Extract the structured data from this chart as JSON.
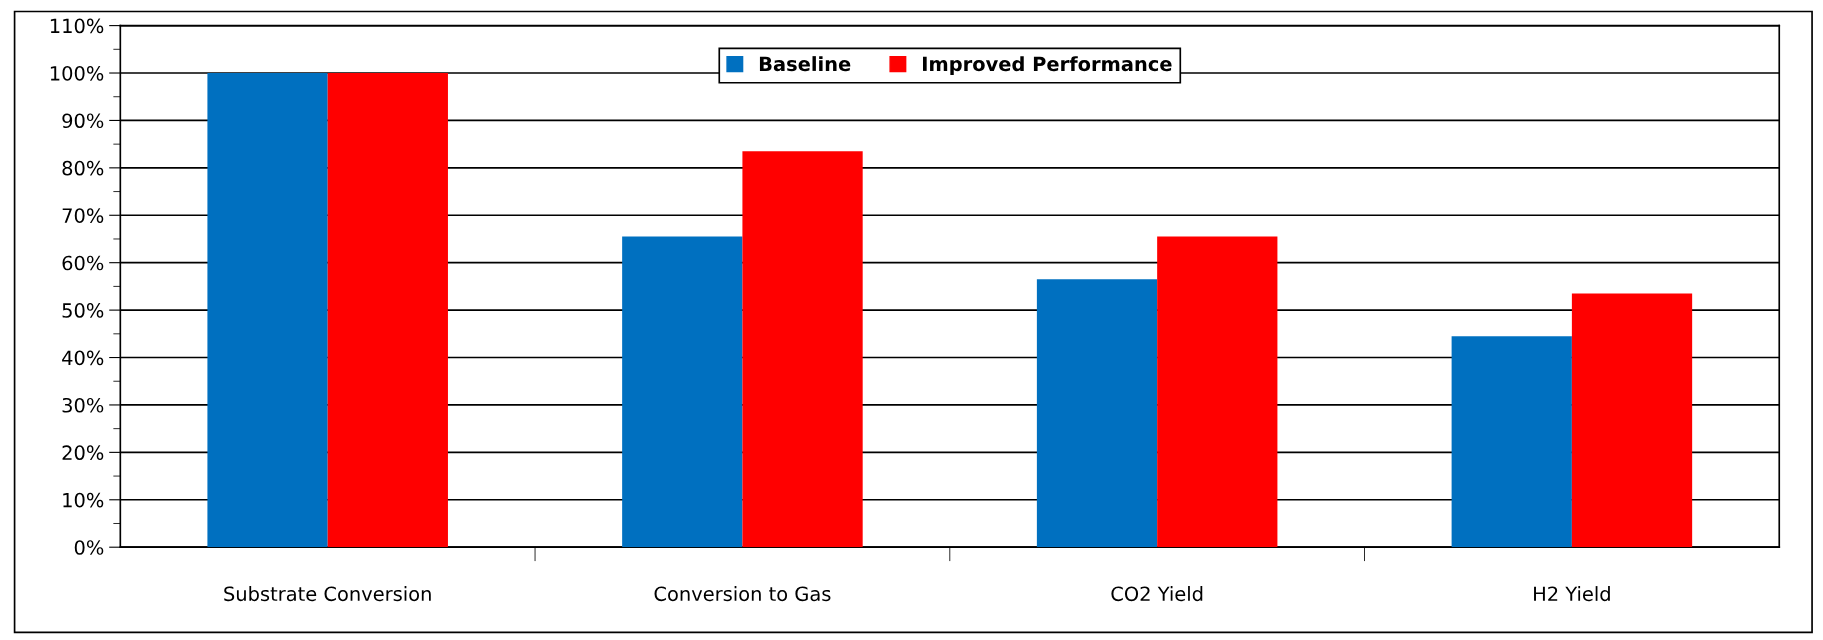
{
  "chart_data": {
    "type": "bar",
    "categories": [
      "Substrate Conversion",
      "Conversion to Gas",
      "CO2 Yield",
      "H2 Yield"
    ],
    "series": [
      {
        "name": "Baseline",
        "color": "#0070c0",
        "values": [
          100,
          65.5,
          56.5,
          44.5
        ]
      },
      {
        "name": "Improved Performance",
        "color": "#ff0000",
        "values": [
          100,
          83.5,
          65.5,
          53.5
        ]
      }
    ],
    "ylim": [
      0,
      110
    ],
    "yticks": [
      {
        "value": 0,
        "label": "0%"
      },
      {
        "value": 10,
        "label": "10%"
      },
      {
        "value": 20,
        "label": "20%"
      },
      {
        "value": 30,
        "label": "30%"
      },
      {
        "value": 40,
        "label": "40%"
      },
      {
        "value": 50,
        "label": "50%"
      },
      {
        "value": 60,
        "label": "60%"
      },
      {
        "value": 70,
        "label": "70%"
      },
      {
        "value": 80,
        "label": "80%"
      },
      {
        "value": 90,
        "label": "90%"
      },
      {
        "value": 100,
        "label": "100%"
      },
      {
        "value": 110,
        "label": "110%"
      }
    ],
    "grid": "y",
    "legend": "top"
  }
}
